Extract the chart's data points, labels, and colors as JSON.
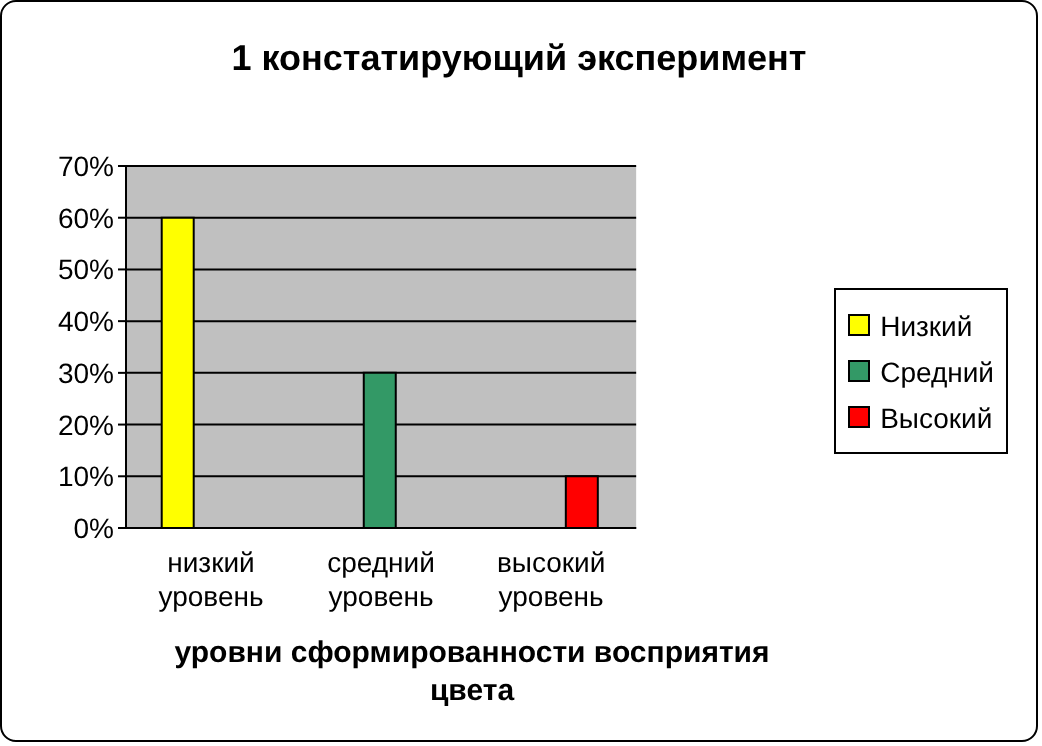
{
  "chart_data": {
    "type": "bar",
    "title": "1 констатирующий эксперимент",
    "xlabel": "уровни сформированности восприятия цвета",
    "categories": [
      "низкий уровень",
      "средний уровень",
      "высокий уровень"
    ],
    "series": [
      {
        "name": "Низкий",
        "color": "#ffff00",
        "values": [
          60,
          null,
          null
        ]
      },
      {
        "name": "Средний",
        "color": "#339966",
        "values": [
          null,
          30,
          null
        ]
      },
      {
        "name": "Высокий",
        "color": "#ff0000",
        "values": [
          null,
          null,
          10
        ]
      }
    ],
    "ylim": [
      0,
      70
    ],
    "yticks": [
      {
        "value": 0,
        "label": "0%"
      },
      {
        "value": 10,
        "label": "10%"
      },
      {
        "value": 20,
        "label": "20%"
      },
      {
        "value": 30,
        "label": "30%"
      },
      {
        "value": 40,
        "label": "40%"
      },
      {
        "value": 50,
        "label": "50%"
      },
      {
        "value": 60,
        "label": "60%"
      },
      {
        "value": 70,
        "label": "70%"
      }
    ],
    "grid": "y",
    "legend": "right"
  }
}
